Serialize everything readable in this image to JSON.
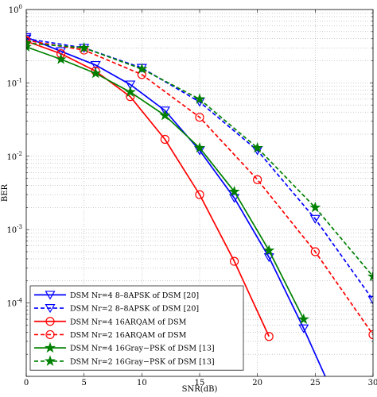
{
  "chart_data": {
    "type": "line",
    "title": "",
    "xlabel": "SNR(dB)",
    "ylabel": "BER",
    "xlim": [
      0,
      30
    ],
    "ylim": [
      1e-05,
      1
    ],
    "yscale": "log",
    "grid": true,
    "legend_position": "bottom-left",
    "x_ticks": [
      "0",
      "5",
      "10",
      "15",
      "20",
      "25",
      "30"
    ],
    "y_ticks": [
      {
        "value": 1,
        "base": "10",
        "exp": "0"
      },
      {
        "value": 0.1,
        "base": "10",
        "exp": "-1"
      },
      {
        "value": 0.01,
        "base": "10",
        "exp": "-2"
      },
      {
        "value": 0.001,
        "base": "10",
        "exp": "-3"
      },
      {
        "value": 0.0001,
        "base": "10",
        "exp": "-4"
      }
    ],
    "series": [
      {
        "name": "DSM  Nr=4  8–8APSK  of  DSM [20]",
        "color": "#0000ff",
        "dash": "solid",
        "marker": "triangle-down",
        "x": [
          0,
          3,
          6,
          9,
          12,
          15,
          18,
          21,
          24,
          27
        ],
        "y": [
          0.42,
          0.27,
          0.175,
          0.095,
          0.042,
          0.012,
          0.0027,
          0.00042,
          4.5e-05,
          4e-06
        ]
      },
      {
        "name": "DSM  Nr=2  8–8APSK  of  DSM [20]",
        "color": "#0000ff",
        "dash": "dash",
        "marker": "triangle-down",
        "x": [
          0,
          5,
          10,
          15,
          20,
          25,
          30
        ],
        "y": [
          0.4,
          0.3,
          0.16,
          0.055,
          0.012,
          0.0014,
          0.00011
        ]
      },
      {
        "name": "DSM  Nr=4  16ARQAM  of  DSM",
        "color": "#ff0000",
        "dash": "solid",
        "marker": "circle",
        "x": [
          0,
          3,
          6,
          9,
          12,
          15,
          18,
          21
        ],
        "y": [
          0.37,
          0.25,
          0.145,
          0.065,
          0.017,
          0.003,
          0.00037,
          3.5e-05
        ]
      },
      {
        "name": "DSM  Nr=2  16ARQAM  of  DSM",
        "color": "#ff0000",
        "dash": "dash",
        "marker": "circle",
        "x": [
          0,
          5,
          10,
          15,
          20,
          25,
          30
        ],
        "y": [
          0.38,
          0.28,
          0.13,
          0.034,
          0.0048,
          0.0005,
          3.7e-05
        ]
      },
      {
        "name": "DSM  Nr=4  16Gray−PSK  of  DSM [13]",
        "color": "#008000",
        "dash": "solid",
        "marker": "star",
        "x": [
          0,
          3,
          6,
          9,
          12,
          15,
          18,
          21,
          24
        ],
        "y": [
          0.31,
          0.21,
          0.135,
          0.075,
          0.036,
          0.013,
          0.0033,
          0.00052,
          6e-05
        ]
      },
      {
        "name": "DSM  Nr=2  16Gray−PSK  of  DSM [13]",
        "color": "#008000",
        "dash": "dash",
        "marker": "star",
        "x": [
          0,
          5,
          10,
          15,
          20,
          25,
          30
        ],
        "y": [
          0.35,
          0.3,
          0.155,
          0.06,
          0.013,
          0.002,
          0.00023
        ]
      }
    ]
  }
}
